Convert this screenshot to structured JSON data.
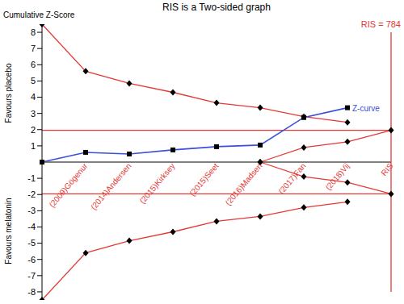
{
  "chart_data": {
    "type": "line",
    "title": "RIS is a Two-sided graph",
    "y_label": "Cumulative Z-Score",
    "annotations": [
      "Favours placebo",
      "Favours melatonin"
    ],
    "categories": [
      null,
      "(2009)Gögenur",
      "(2014)Andersen",
      "(2015)Kirksey",
      "(2015)Seet",
      "(2016)Madsen",
      "(2017)Fan",
      "(2018)Vij",
      "RIS"
    ],
    "ylim": [
      -8.5,
      8.5
    ],
    "yticks": [
      -8,
      -7,
      -6,
      -5,
      -4,
      -3,
      -2,
      -1,
      1,
      2,
      3,
      4,
      5,
      6,
      7,
      8
    ],
    "series": [
      {
        "color": "#e53935",
        "marker": "diamond",
        "line_style": "solid",
        "values": [
          8.5,
          5.6,
          4.85,
          4.3,
          3.65,
          3.35,
          2.8,
          2.45,
          null
        ]
      },
      {
        "color": "#e53935",
        "marker": "diamond",
        "line_style": "solid",
        "values": [
          -8.5,
          -5.6,
          -4.85,
          -4.3,
          -3.65,
          -3.35,
          -2.8,
          -2.45,
          null
        ]
      },
      {
        "color": "#e53935",
        "marker": "diamond",
        "line_style": "solid",
        "values": [
          null,
          null,
          null,
          null,
          null,
          0,
          0.9,
          1.25,
          1.96
        ]
      },
      {
        "color": "#e53935",
        "marker": "diamond",
        "line_style": "solid",
        "values": [
          null,
          null,
          null,
          null,
          null,
          0,
          -0.9,
          -1.25,
          -1.96
        ]
      },
      {
        "color": "#e53935",
        "marker": "none",
        "line_style": "solid",
        "values": [
          1.96,
          1.96,
          1.96,
          1.96,
          1.96,
          1.96,
          1.96,
          1.96,
          1.96
        ]
      },
      {
        "color": "#e53935",
        "marker": "none",
        "line_style": "solid",
        "values": [
          -1.96,
          -1.96,
          -1.96,
          -1.96,
          -1.96,
          -1.96,
          -1.96,
          -1.96,
          -1.96
        ]
      },
      {
        "name": "Z-curve",
        "color": "#3a4fd8",
        "marker": "square",
        "line_style": "solid",
        "values": [
          0,
          0.6,
          0.5,
          0.75,
          0.95,
          1.05,
          2.75,
          3.35,
          null
        ]
      }
    ],
    "ris_line": {
      "category": "RIS",
      "range": [
        -8,
        8
      ],
      "label": "RIS = 784",
      "color": "#e53935"
    }
  }
}
